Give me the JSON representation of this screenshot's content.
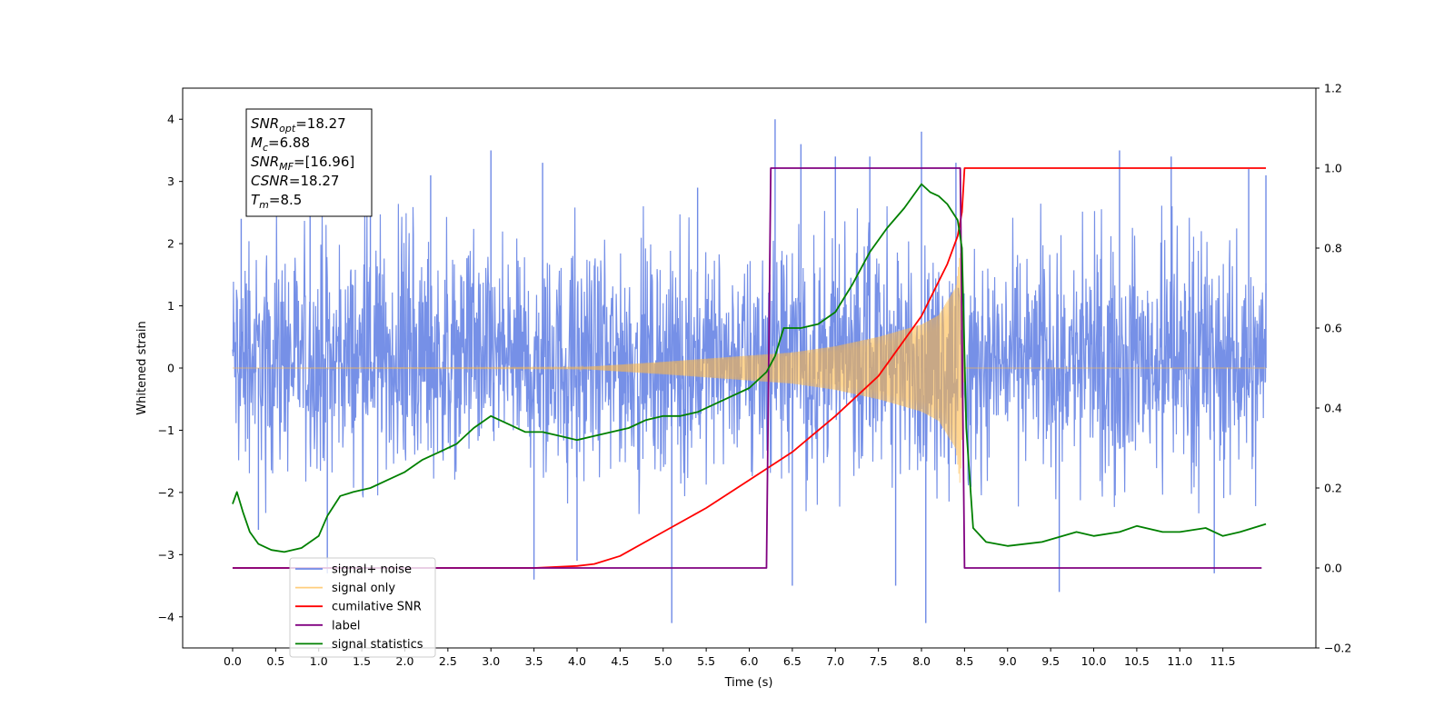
{
  "chart_data": {
    "type": "line",
    "xlabel": "Time (s)",
    "ylabel": "Whitened strain",
    "xlim": [
      -0.58,
      12.58
    ],
    "ylim": [
      -4.5,
      4.5
    ],
    "ylim_right": [
      -0.2,
      1.2
    ],
    "x_ticks": [
      "0.0",
      "0.5",
      "1.0",
      "1.5",
      "2.0",
      "2.5",
      "3.0",
      "3.5",
      "4.0",
      "4.5",
      "5.0",
      "5.5",
      "6.0",
      "6.5",
      "7.0",
      "7.5",
      "8.0",
      "8.5",
      "9.0",
      "9.5",
      "10.0",
      "10.5",
      "11.0",
      "11.5"
    ],
    "y_ticks_left": [
      "4",
      "3",
      "2",
      "1",
      "0",
      "−1",
      "−2",
      "−3",
      "−4"
    ],
    "y_ticks_right": [
      "1.2",
      "1.0",
      "0.8",
      "0.6",
      "0.4",
      "0.2",
      "0.0",
      "−0.2"
    ],
    "info_box": [
      {
        "sym": "SNR",
        "sub": "opt",
        "val": "=18.27"
      },
      {
        "sym": "M",
        "sub": "c",
        "val": "=6.88"
      },
      {
        "sym": "SNR",
        "sub": "MF",
        "val": "=[16.96]"
      },
      {
        "sym": "CSNR",
        "sub": "",
        "val": "=18.27"
      },
      {
        "sym": "T",
        "sub": "m",
        "val": "=8.5"
      }
    ],
    "legend": {
      "placement": "lower-left",
      "entries": [
        "signal+ noise",
        "signal only",
        "cumilative SNR",
        "label",
        "signal statistics"
      ]
    },
    "series": [
      {
        "name": "signal+ noise",
        "axis": "left",
        "color": "#6f8ae6",
        "kind": "noise",
        "x_range": [
          0.0,
          12.0
        ],
        "typical_band": [
          -1.8,
          2.2
        ],
        "spikes": [
          [
            0.1,
            2.4
          ],
          [
            0.3,
            -2.6
          ],
          [
            0.9,
            2.7
          ],
          [
            1.1,
            -3.3
          ],
          [
            1.6,
            2.9
          ],
          [
            2.3,
            3.1
          ],
          [
            3.0,
            3.5
          ],
          [
            3.5,
            -3.4
          ],
          [
            3.6,
            3.3
          ],
          [
            4.0,
            -3.1
          ],
          [
            5.1,
            -4.1
          ],
          [
            5.4,
            2.9
          ],
          [
            6.3,
            4.0
          ],
          [
            6.5,
            -3.5
          ],
          [
            6.6,
            3.6
          ],
          [
            7.0,
            3.4
          ],
          [
            7.4,
            3.4
          ],
          [
            7.7,
            -3.5
          ],
          [
            8.0,
            3.8
          ],
          [
            8.05,
            -4.1
          ],
          [
            8.4,
            3.3
          ],
          [
            9.6,
            -3.6
          ],
          [
            10.3,
            3.5
          ],
          [
            10.9,
            3.4
          ],
          [
            11.4,
            -3.3
          ],
          [
            11.8,
            3.2
          ],
          [
            12.0,
            3.1
          ]
        ]
      },
      {
        "name": "signal only",
        "axis": "left",
        "color": "#ffb946",
        "kind": "chirp",
        "x_range": [
          0.0,
          8.5
        ],
        "envelope": {
          "x": [
            0.0,
            4.0,
            5.0,
            6.0,
            6.5,
            7.0,
            7.5,
            8.0,
            8.2,
            8.4,
            8.45,
            8.5
          ],
          "y": [
            0.0,
            0.01,
            0.1,
            0.2,
            0.25,
            0.35,
            0.5,
            0.7,
            0.85,
            1.3,
            1.9,
            0.0
          ]
        }
      },
      {
        "name": "cumilative SNR",
        "axis": "right",
        "color": "#ff0000",
        "x": [
          0.0,
          3.5,
          4.0,
          4.2,
          4.5,
          5.0,
          5.5,
          6.0,
          6.5,
          7.0,
          7.5,
          8.0,
          8.3,
          8.42,
          8.47,
          8.5,
          12.0
        ],
        "y": [
          0.0,
          0.0,
          0.005,
          0.01,
          0.03,
          0.09,
          0.15,
          0.22,
          0.29,
          0.38,
          0.48,
          0.63,
          0.76,
          0.83,
          0.89,
          1.0,
          1.0
        ]
      },
      {
        "name": "label",
        "axis": "right",
        "color": "#800080",
        "x": [
          0.0,
          6.2,
          6.25,
          8.45,
          8.5,
          11.95
        ],
        "y": [
          0.0,
          0.0,
          1.0,
          1.0,
          0.0,
          0.0
        ]
      },
      {
        "name": "signal statistics",
        "axis": "right",
        "color": "#008000",
        "x": [
          0.0,
          0.05,
          0.12,
          0.2,
          0.3,
          0.45,
          0.6,
          0.8,
          1.0,
          1.1,
          1.25,
          1.4,
          1.6,
          1.8,
          2.0,
          2.2,
          2.4,
          2.6,
          2.8,
          3.0,
          3.2,
          3.4,
          3.6,
          3.8,
          4.0,
          4.2,
          4.4,
          4.6,
          4.8,
          5.0,
          5.2,
          5.4,
          5.6,
          5.8,
          6.0,
          6.2,
          6.3,
          6.4,
          6.6,
          6.8,
          7.0,
          7.2,
          7.4,
          7.6,
          7.8,
          8.0,
          8.1,
          8.2,
          8.3,
          8.42,
          8.47,
          8.52,
          8.6,
          8.75,
          9.0,
          9.4,
          9.8,
          10.0,
          10.3,
          10.5,
          10.8,
          11.0,
          11.3,
          11.5,
          11.7,
          12.0
        ],
        "y": [
          0.16,
          0.19,
          0.14,
          0.09,
          0.06,
          0.045,
          0.04,
          0.05,
          0.08,
          0.13,
          0.18,
          0.19,
          0.2,
          0.22,
          0.24,
          0.27,
          0.29,
          0.31,
          0.35,
          0.38,
          0.36,
          0.34,
          0.34,
          0.33,
          0.32,
          0.33,
          0.34,
          0.35,
          0.37,
          0.38,
          0.38,
          0.39,
          0.41,
          0.43,
          0.45,
          0.49,
          0.53,
          0.6,
          0.6,
          0.61,
          0.64,
          0.71,
          0.79,
          0.85,
          0.9,
          0.96,
          0.94,
          0.93,
          0.91,
          0.87,
          0.8,
          0.35,
          0.1,
          0.065,
          0.055,
          0.065,
          0.09,
          0.08,
          0.09,
          0.105,
          0.09,
          0.09,
          0.1,
          0.08,
          0.09,
          0.11
        ]
      }
    ]
  }
}
